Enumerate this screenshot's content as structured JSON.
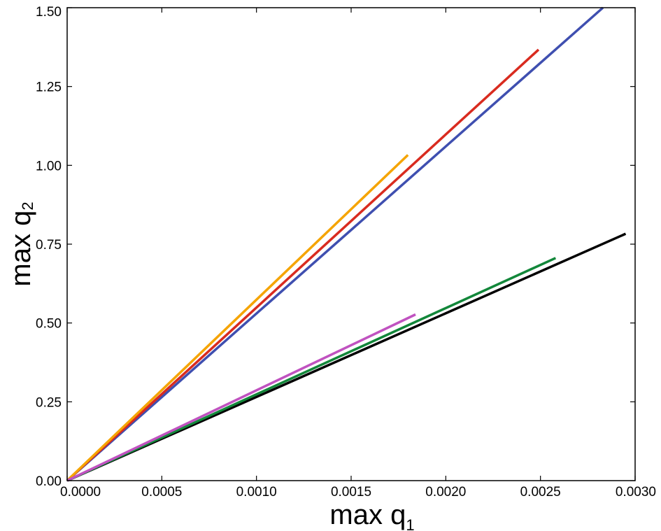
{
  "chart_data": {
    "type": "line",
    "xlabel": "max q",
    "xlabel_sub": "1",
    "ylabel": "max q",
    "ylabel_sub": "2",
    "xlim": [
      0,
      0.003
    ],
    "ylim": [
      0,
      1.5
    ],
    "xticks": [
      "0.0000",
      "0.0005",
      "0.0010",
      "0.0015",
      "0.0020",
      "0.0025",
      "0.0030"
    ],
    "yticks": [
      "0.00",
      "0.25",
      "0.50",
      "0.75",
      "1.00",
      "1.25",
      "1.50"
    ],
    "grid": false,
    "series": [
      {
        "color": "#3f4fb0",
        "points": [
          [
            0,
            0
          ],
          [
            0.00283,
            1.5
          ]
        ]
      },
      {
        "color": "#d92b1f",
        "points": [
          [
            0,
            0
          ],
          [
            0.00249,
            1.367
          ]
        ]
      },
      {
        "color": "#f5a400",
        "points": [
          [
            0,
            0
          ],
          [
            0.0018,
            1.033
          ]
        ]
      },
      {
        "color": "#000000",
        "points": [
          [
            0,
            0
          ],
          [
            0.00295,
            0.783
          ]
        ]
      },
      {
        "color": "#12873a",
        "points": [
          [
            0,
            0
          ],
          [
            0.00258,
            0.706
          ]
        ]
      },
      {
        "color": "#c052c0",
        "points": [
          [
            0,
            0
          ],
          [
            0.00184,
            0.527
          ]
        ]
      }
    ]
  }
}
